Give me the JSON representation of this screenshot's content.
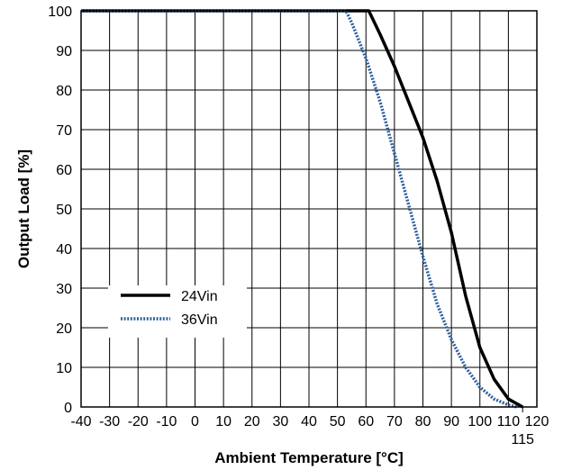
{
  "chart_data": {
    "type": "line",
    "xlabel": "Ambient Temperature [°C]",
    "ylabel": "Output Load [%]",
    "xlim": [
      -40,
      120
    ],
    "ylim": [
      0,
      100
    ],
    "x_ticks": [
      -40,
      -30,
      -20,
      -10,
      0,
      10,
      20,
      30,
      40,
      50,
      60,
      70,
      80,
      90,
      100,
      110,
      120
    ],
    "x_tick_labels": [
      "-40",
      "-30",
      "-20",
      "-10",
      "0",
      "10",
      "20",
      "30",
      "40",
      "50",
      "60",
      "70",
      "80",
      "90",
      "100",
      "110",
      "120"
    ],
    "extra_x_tick": {
      "value": 115,
      "label": "115"
    },
    "y_ticks": [
      0,
      10,
      20,
      30,
      40,
      50,
      60,
      70,
      80,
      90,
      100
    ],
    "y_tick_labels": [
      "0",
      "10",
      "20",
      "30",
      "40",
      "50",
      "60",
      "70",
      "80",
      "90",
      "100"
    ],
    "grid": true,
    "legend_position": "lower-left",
    "series": [
      {
        "name": "24Vin",
        "color": "#000000",
        "style": "solid",
        "x": [
          -40,
          61,
          65,
          70,
          75,
          80,
          85,
          90,
          95,
          100,
          105,
          110,
          115
        ],
        "y": [
          100,
          100,
          94,
          86,
          77,
          68,
          57,
          44,
          28,
          15,
          7,
          2,
          0
        ]
      },
      {
        "name": "36Vin",
        "color": "#2e5f9e",
        "style": "dotted",
        "x": [
          -40,
          53,
          55,
          60,
          65,
          70,
          75,
          80,
          85,
          90,
          95,
          100,
          105,
          110,
          113
        ],
        "y": [
          100,
          100,
          97,
          88,
          77,
          64,
          51,
          38,
          26,
          17,
          10,
          5,
          2,
          0.5,
          0
        ]
      }
    ]
  }
}
